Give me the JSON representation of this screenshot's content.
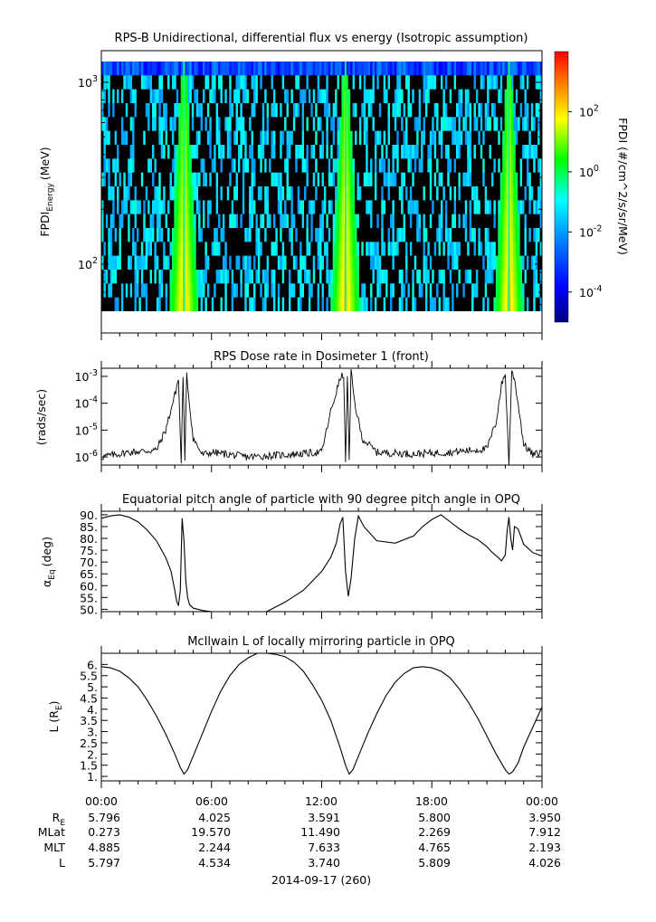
{
  "chart_data": [
    {
      "type": "heatmap",
      "title": "RPS-B  Unidirectional, differential flux vs energy (Isotropic assumption)",
      "ylabel": "FPDI_Energy (MeV)",
      "ylabel_main": "FPDI",
      "ylabel_sub": "Energy",
      "ylabel_unit": "(MeV)",
      "y_scale": "log",
      "ylim": [
        55,
        1300
      ],
      "yticks": [
        {
          "value": 100,
          "base": "10",
          "exp": "2"
        },
        {
          "value": 1000,
          "base": "10",
          "exp": "3"
        }
      ],
      "xlim_hours": [
        0,
        24
      ],
      "bright_bands_hours": [
        4.5,
        13.3,
        22.2
      ],
      "colorbar": {
        "label": "FPDI (#/cm^2/s/sr/MeV)",
        "scale": "log",
        "range": [
          1e-05,
          10000
        ],
        "ticks": [
          {
            "value": 0.0001,
            "base": "10",
            "exp": "-4"
          },
          {
            "value": 0.01,
            "base": "10",
            "exp": "-2"
          },
          {
            "value": 1,
            "base": "10",
            "exp": "0"
          },
          {
            "value": 100,
            "base": "10",
            "exp": "2"
          }
        ],
        "colors": [
          "#00007f",
          "#0000ff",
          "#0080ff",
          "#00ffff",
          "#00ff00",
          "#ffff00",
          "#ff8000",
          "#ff0000"
        ]
      }
    },
    {
      "type": "line",
      "title": "RPS  Dose rate in Dosimeter 1 (front)",
      "ylabel": "(rads/sec)",
      "y_scale": "log",
      "ylim": [
        5e-07,
        0.002
      ],
      "yticks": [
        {
          "value": 1e-06,
          "base": "10",
          "exp": "-6"
        },
        {
          "value": 1e-05,
          "base": "10",
          "exp": "-5"
        },
        {
          "value": 0.0001,
          "base": "10",
          "exp": "-4"
        },
        {
          "value": 0.001,
          "base": "10",
          "exp": "-3"
        }
      ],
      "x": [
        0,
        1.5,
        3.0,
        3.5,
        4.0,
        4.2,
        4.35,
        4.45,
        4.55,
        4.65,
        4.75,
        5.0,
        5.5,
        6.0,
        8,
        10,
        12.0,
        12.5,
        13.0,
        13.2,
        13.3,
        13.4,
        13.5,
        13.6,
        13.8,
        14.2,
        15,
        17,
        19,
        21.0,
        21.5,
        21.8,
        22.0,
        22.2,
        22.35,
        22.5,
        22.7,
        23.0,
        23.5,
        24.0
      ],
      "y": [
        1e-06,
        1.5e-06,
        1.8e-06,
        1e-05,
        0.0002,
        0.0008,
        6e-07,
        0.0012,
        6e-07,
        0.0015,
        0.0002,
        5e-06,
        1.2e-06,
        1.5e-06,
        1e-06,
        1.2e-06,
        1.5e-06,
        5e-05,
        0.0008,
        0.0012,
        5e-07,
        0.0013,
        6e-07,
        0.0015,
        0.0001,
        5e-06,
        1.5e-06,
        1.3e-06,
        1.5e-06,
        2e-06,
        2e-05,
        0.0005,
        0.0012,
        5e-07,
        0.0015,
        0.0008,
        0.0001,
        3e-06,
        1.2e-06,
        1.5e-06
      ]
    },
    {
      "type": "line",
      "title": "Equatorial pitch angle of particle with 90 degree pitch angle in OPQ",
      "ylabel": "α_Eq (deg)",
      "ylabel_main": "α",
      "ylabel_sub": "Eq",
      "ylabel_unit": "(deg)",
      "ylim": [
        49,
        91.5
      ],
      "yticks": [
        50,
        55,
        60,
        65,
        70,
        75,
        80,
        85,
        90
      ],
      "segments": [
        {
          "x": [
            0,
            0.5,
            1.0,
            1.5,
            2.0,
            2.5,
            3.0,
            3.5,
            3.8,
            4.0,
            4.1,
            4.2,
            4.3,
            4.4,
            4.5,
            4.6,
            4.7,
            4.8,
            5.0,
            5.5,
            6.0,
            6.5,
            7.0
          ],
          "y": [
            88.5,
            89.5,
            90.0,
            89.0,
            87.0,
            83.5,
            79.0,
            72.0,
            66.0,
            58.0,
            53.5,
            51.5,
            58.0,
            88.5,
            79.0,
            62.0,
            55.0,
            52.0,
            50.5,
            49.5,
            49.0,
            49.0,
            49.0
          ]
        },
        {
          "x": [
            9.0,
            10.0,
            11.0,
            12.0,
            12.5,
            12.8,
            13.0,
            13.15,
            13.3,
            13.45,
            13.6,
            13.8,
            14.0,
            14.3,
            15.0,
            16.0,
            17.0,
            17.5,
            18.0,
            18.5,
            19.0,
            19.5,
            20.0,
            20.5,
            21.0,
            21.3,
            21.6,
            21.8,
            22.0,
            22.1,
            22.2,
            22.3,
            22.4,
            22.5,
            22.7,
            23.0,
            23.5,
            24.0
          ],
          "y": [
            49.0,
            53.0,
            58.0,
            66.0,
            72.0,
            78.0,
            86.0,
            89.0,
            66.0,
            55.5,
            63.0,
            80.0,
            89.5,
            85.0,
            79.0,
            78.0,
            81.0,
            85.0,
            88.0,
            90.0,
            87.0,
            84.0,
            81.5,
            79.5,
            76.5,
            74.0,
            72.0,
            70.5,
            73.0,
            83.0,
            89.0,
            80.0,
            75.0,
            85.0,
            84.0,
            77.5,
            74.0,
            72.5
          ]
        }
      ]
    },
    {
      "type": "line",
      "title": "McIlwain L of locally mirroring particle in OPQ",
      "ylabel": "L (R_E)",
      "ylabel_main": "L (R",
      "ylabel_sub": "E",
      "ylabel_unit": ")",
      "ylim": [
        0.8,
        6.5
      ],
      "yticks": [
        1.0,
        1.5,
        2.0,
        2.5,
        3.0,
        3.5,
        4.0,
        4.5,
        5.0,
        5.5,
        6.0
      ],
      "x": [
        0,
        0.5,
        1,
        1.5,
        2,
        2.5,
        3,
        3.5,
        4,
        4.3,
        4.5,
        4.7,
        5,
        5.5,
        6,
        6.5,
        7,
        7.5,
        8,
        8.5,
        9,
        9.5,
        10,
        10.5,
        11,
        11.5,
        12,
        12.5,
        13,
        13.3,
        13.5,
        13.7,
        14,
        14.5,
        15,
        15.5,
        16,
        16.5,
        17,
        17.5,
        18,
        18.5,
        19,
        19.5,
        20,
        20.5,
        21,
        21.5,
        22,
        22.2,
        22.4,
        22.7,
        23,
        23.5,
        24
      ],
      "y": [
        5.9,
        5.85,
        5.7,
        5.4,
        5.0,
        4.4,
        3.7,
        2.9,
        2.0,
        1.4,
        1.1,
        1.3,
        1.9,
        2.9,
        3.9,
        4.8,
        5.5,
        6.0,
        6.3,
        6.5,
        6.5,
        6.45,
        6.35,
        6.1,
        5.7,
        5.1,
        4.4,
        3.5,
        2.3,
        1.5,
        1.1,
        1.3,
        1.9,
        2.9,
        3.8,
        4.6,
        5.2,
        5.6,
        5.85,
        5.9,
        5.85,
        5.7,
        5.4,
        4.9,
        4.3,
        3.6,
        2.8,
        2.0,
        1.3,
        1.1,
        1.2,
        1.6,
        2.3,
        3.2,
        4.1
      ]
    }
  ],
  "x_axis": {
    "tick_labels": [
      "00:00",
      "06:00",
      "12:00",
      "18:00",
      "00:00"
    ],
    "date_label": "2014-09-17 (260)"
  },
  "ephemeris": {
    "rows": [
      {
        "label_main": "R",
        "label_sub": "E",
        "values": [
          "5.796",
          "4.025",
          "3.591",
          "5.800",
          "3.950"
        ]
      },
      {
        "label_main": "MLat",
        "label_sub": "",
        "values": [
          "0.273",
          "19.570",
          "11.490",
          "2.269",
          "7.912"
        ]
      },
      {
        "label_main": "MLT",
        "label_sub": "",
        "values": [
          "4.885",
          "2.244",
          "7.633",
          "4.765",
          "2.193"
        ]
      },
      {
        "label_main": "L",
        "label_sub": "",
        "values": [
          "5.797",
          "4.534",
          "3.740",
          "5.809",
          "4.026"
        ]
      }
    ]
  }
}
